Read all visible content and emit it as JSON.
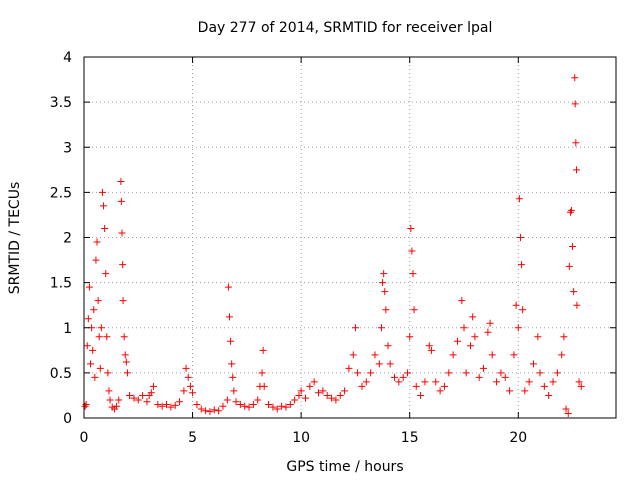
{
  "chart_data": {
    "type": "scatter",
    "title": "Day 277 of 2014, SRMTID for receiver lpal",
    "xlabel": "GPS time / hours",
    "ylabel": "SRMTID / TECUs",
    "xlim": [
      0,
      24.5
    ],
    "ylim": [
      0,
      4
    ],
    "xticks": [
      0,
      5,
      10,
      15,
      20
    ],
    "xtick_labels": [
      "0",
      "5",
      "10",
      "15",
      "20"
    ],
    "yticks": [
      0,
      0.5,
      1,
      1.5,
      2,
      2.5,
      3,
      3.5,
      4
    ],
    "ytick_labels": [
      "0",
      "0.5",
      "1",
      "1.5",
      "2",
      "2.5",
      "3",
      "3.5",
      "4"
    ],
    "grid": true,
    "marker": "+",
    "marker_color": "#ff0000",
    "series": [
      {
        "name": "SRMTID",
        "points": [
          [
            0.05,
            0.13
          ],
          [
            0.1,
            0.15
          ],
          [
            0.15,
            0.8
          ],
          [
            0.2,
            1.1
          ],
          [
            0.25,
            1.45
          ],
          [
            0.3,
            0.6
          ],
          [
            0.35,
            1.0
          ],
          [
            0.4,
            0.75
          ],
          [
            0.45,
            1.2
          ],
          [
            0.5,
            0.45
          ],
          [
            0.55,
            1.75
          ],
          [
            0.6,
            1.95
          ],
          [
            0.65,
            1.3
          ],
          [
            0.7,
            0.9
          ],
          [
            0.75,
            0.55
          ],
          [
            0.8,
            1.0
          ],
          [
            0.85,
            2.5
          ],
          [
            0.9,
            2.35
          ],
          [
            0.95,
            2.1
          ],
          [
            1.0,
            1.6
          ],
          [
            1.05,
            0.9
          ],
          [
            1.1,
            0.5
          ],
          [
            1.15,
            0.3
          ],
          [
            1.2,
            0.2
          ],
          [
            1.3,
            0.12
          ],
          [
            1.4,
            0.1
          ],
          [
            1.5,
            0.13
          ],
          [
            1.6,
            0.2
          ],
          [
            1.7,
            2.62
          ],
          [
            1.72,
            2.4
          ],
          [
            1.75,
            2.05
          ],
          [
            1.78,
            1.7
          ],
          [
            1.8,
            1.3
          ],
          [
            1.85,
            0.9
          ],
          [
            1.9,
            0.7
          ],
          [
            1.95,
            0.62
          ],
          [
            2.0,
            0.5
          ],
          [
            2.1,
            0.25
          ],
          [
            2.3,
            0.22
          ],
          [
            2.5,
            0.2
          ],
          [
            2.7,
            0.25
          ],
          [
            2.9,
            0.18
          ],
          [
            3.0,
            0.25
          ],
          [
            3.1,
            0.28
          ],
          [
            3.2,
            0.35
          ],
          [
            3.4,
            0.15
          ],
          [
            3.6,
            0.13
          ],
          [
            3.8,
            0.15
          ],
          [
            4.0,
            0.12
          ],
          [
            4.2,
            0.14
          ],
          [
            4.4,
            0.18
          ],
          [
            4.6,
            0.3
          ],
          [
            4.7,
            0.55
          ],
          [
            4.8,
            0.45
          ],
          [
            4.9,
            0.35
          ],
          [
            5.0,
            0.28
          ],
          [
            5.2,
            0.15
          ],
          [
            5.4,
            0.1
          ],
          [
            5.6,
            0.08
          ],
          [
            5.8,
            0.07
          ],
          [
            6.0,
            0.09
          ],
          [
            6.2,
            0.08
          ],
          [
            6.4,
            0.13
          ],
          [
            6.6,
            0.2
          ],
          [
            6.65,
            1.45
          ],
          [
            6.7,
            1.12
          ],
          [
            6.75,
            0.85
          ],
          [
            6.8,
            0.6
          ],
          [
            6.85,
            0.45
          ],
          [
            6.9,
            0.3
          ],
          [
            7.0,
            0.18
          ],
          [
            7.2,
            0.15
          ],
          [
            7.4,
            0.13
          ],
          [
            7.6,
            0.12
          ],
          [
            7.8,
            0.15
          ],
          [
            8.0,
            0.2
          ],
          [
            8.1,
            0.35
          ],
          [
            8.2,
            0.5
          ],
          [
            8.25,
            0.75
          ],
          [
            8.3,
            0.35
          ],
          [
            8.5,
            0.15
          ],
          [
            8.7,
            0.12
          ],
          [
            8.9,
            0.1
          ],
          [
            9.1,
            0.13
          ],
          [
            9.3,
            0.12
          ],
          [
            9.5,
            0.15
          ],
          [
            9.7,
            0.2
          ],
          [
            9.9,
            0.25
          ],
          [
            10.0,
            0.3
          ],
          [
            10.2,
            0.22
          ],
          [
            10.4,
            0.35
          ],
          [
            10.6,
            0.4
          ],
          [
            10.8,
            0.28
          ],
          [
            11.0,
            0.3
          ],
          [
            11.2,
            0.25
          ],
          [
            11.4,
            0.22
          ],
          [
            11.6,
            0.2
          ],
          [
            11.8,
            0.25
          ],
          [
            12.0,
            0.3
          ],
          [
            12.2,
            0.55
          ],
          [
            12.4,
            0.7
          ],
          [
            12.5,
            1.0
          ],
          [
            12.6,
            0.5
          ],
          [
            12.8,
            0.35
          ],
          [
            13.0,
            0.4
          ],
          [
            13.2,
            0.5
          ],
          [
            13.4,
            0.7
          ],
          [
            13.6,
            0.6
          ],
          [
            13.7,
            1.0
          ],
          [
            13.75,
            1.5
          ],
          [
            13.8,
            1.6
          ],
          [
            13.85,
            1.4
          ],
          [
            13.9,
            1.2
          ],
          [
            14.0,
            0.8
          ],
          [
            14.1,
            0.6
          ],
          [
            14.3,
            0.45
          ],
          [
            14.5,
            0.4
          ],
          [
            14.7,
            0.45
          ],
          [
            14.9,
            0.5
          ],
          [
            15.0,
            0.9
          ],
          [
            15.05,
            2.1
          ],
          [
            15.1,
            1.85
          ],
          [
            15.15,
            1.6
          ],
          [
            15.2,
            1.2
          ],
          [
            15.3,
            0.35
          ],
          [
            15.5,
            0.25
          ],
          [
            15.7,
            0.4
          ],
          [
            15.9,
            0.8
          ],
          [
            16.0,
            0.75
          ],
          [
            16.2,
            0.4
          ],
          [
            16.4,
            0.3
          ],
          [
            16.6,
            0.35
          ],
          [
            16.8,
            0.5
          ],
          [
            17.0,
            0.7
          ],
          [
            17.2,
            0.85
          ],
          [
            17.4,
            1.3
          ],
          [
            17.5,
            1.0
          ],
          [
            17.6,
            0.5
          ],
          [
            17.8,
            0.8
          ],
          [
            17.9,
            1.12
          ],
          [
            18.0,
            0.9
          ],
          [
            18.2,
            0.45
          ],
          [
            18.4,
            0.55
          ],
          [
            18.6,
            0.95
          ],
          [
            18.7,
            1.05
          ],
          [
            18.8,
            0.7
          ],
          [
            19.0,
            0.4
          ],
          [
            19.2,
            0.5
          ],
          [
            19.4,
            0.45
          ],
          [
            19.6,
            0.3
          ],
          [
            19.8,
            0.7
          ],
          [
            19.9,
            1.25
          ],
          [
            20.0,
            1.0
          ],
          [
            20.05,
            2.43
          ],
          [
            20.1,
            2.0
          ],
          [
            20.15,
            1.7
          ],
          [
            20.2,
            1.2
          ],
          [
            20.3,
            0.3
          ],
          [
            20.5,
            0.4
          ],
          [
            20.7,
            0.6
          ],
          [
            20.9,
            0.9
          ],
          [
            21.0,
            0.5
          ],
          [
            21.2,
            0.35
          ],
          [
            21.4,
            0.25
          ],
          [
            21.6,
            0.4
          ],
          [
            21.8,
            0.5
          ],
          [
            22.0,
            0.7
          ],
          [
            22.1,
            0.9
          ],
          [
            22.2,
            0.1
          ],
          [
            22.3,
            0.05
          ],
          [
            22.35,
            1.68
          ],
          [
            22.4,
            2.28
          ],
          [
            22.45,
            2.3
          ],
          [
            22.5,
            1.9
          ],
          [
            22.55,
            1.4
          ],
          [
            22.6,
            3.77
          ],
          [
            22.62,
            3.48
          ],
          [
            22.65,
            3.05
          ],
          [
            22.68,
            2.75
          ],
          [
            22.7,
            1.25
          ],
          [
            22.8,
            0.4
          ],
          [
            22.9,
            0.35
          ]
        ]
      }
    ]
  }
}
